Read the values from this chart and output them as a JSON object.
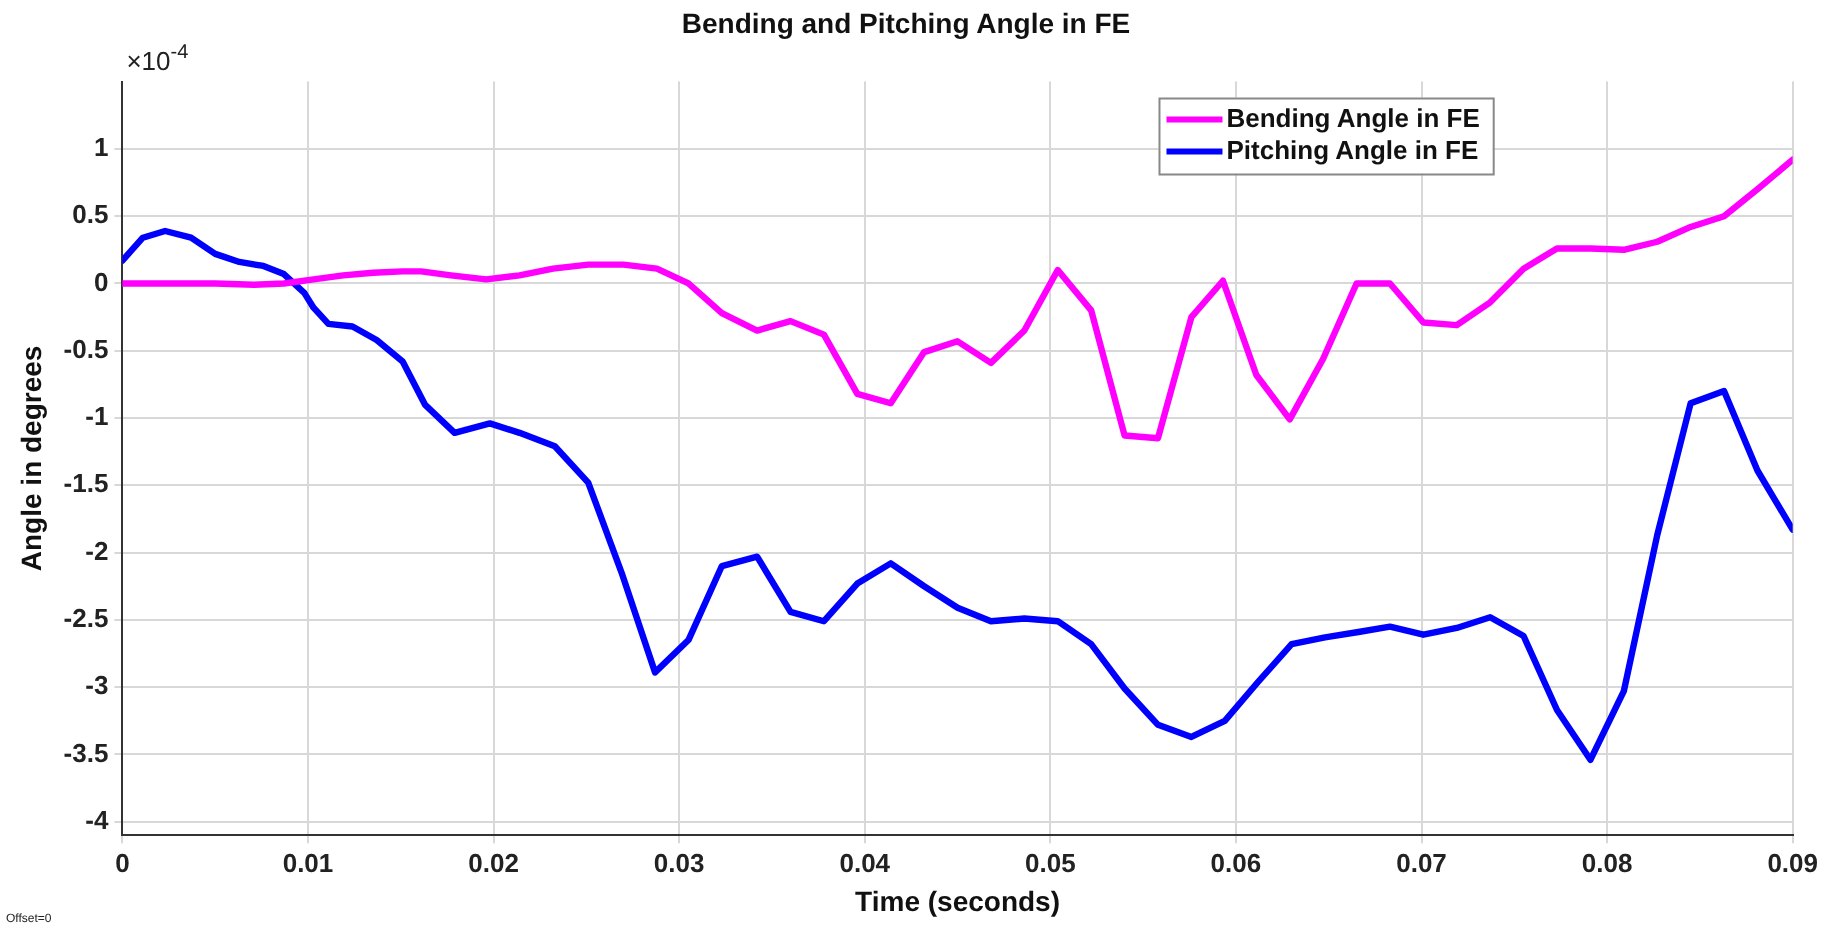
{
  "chart_data": {
    "type": "line",
    "title": "Bending and Pitching Angle in FE",
    "xlabel": "Time (seconds)",
    "ylabel": "Angle in degrees",
    "annotations": [
      "×10$^{-4}$",
      "Offset=0"
    ],
    "xlim": [
      0,
      0.09
    ],
    "xticks": [
      0,
      0.01,
      0.02,
      0.03,
      0.04,
      0.05,
      0.06,
      0.07,
      0.08,
      0.09
    ],
    "ylim": [
      -4.1,
      1.5
    ],
    "yticks": [
      -4,
      -3.5,
      -3,
      -2.5,
      -2,
      -1.5,
      -1,
      -0.5,
      0,
      0.5,
      1
    ],
    "grid": true,
    "legend": "top right",
    "marker": "none",
    "line_style": "solid",
    "series": [
      {
        "name": "Bending Angle in FE",
        "color": "#ff00ff",
        "x": [
          0,
          0.0023,
          0.005,
          0.0071,
          0.0087,
          0.0103,
          0.0119,
          0.0135,
          0.0151,
          0.0161,
          0.0177,
          0.0196,
          0.0214,
          0.0232,
          0.0251,
          0.027,
          0.0288,
          0.0305,
          0.0323,
          0.0342,
          0.036,
          0.0378,
          0.0396,
          0.0414,
          0.0432,
          0.045,
          0.0468,
          0.0486,
          0.0504,
          0.0522,
          0.054,
          0.0558,
          0.0576,
          0.0593,
          0.0611,
          0.0629,
          0.0647,
          0.0665,
          0.0683,
          0.0701,
          0.0719,
          0.0737,
          0.0755,
          0.0773,
          0.0791,
          0.0809,
          0.0827,
          0.0845,
          0.0863,
          0.0881,
          0.09
        ],
        "values": [
          0,
          0,
          0,
          -0.01,
          0,
          0.03,
          0.06,
          0.08,
          0.09,
          0.09,
          0.06,
          0.03,
          0.06,
          0.11,
          0.14,
          0.14,
          0.11,
          0,
          -0.22,
          -0.35,
          -0.28,
          -0.38,
          -0.82,
          -0.89,
          -0.51,
          -0.43,
          -0.59,
          -0.35,
          0.1,
          -0.2,
          -1.13,
          -1.15,
          -0.25,
          0.02,
          -0.68,
          -1.01,
          -0.56,
          0,
          0,
          -0.29,
          -0.31,
          -0.14,
          0.11,
          0.26,
          0.26,
          0.25,
          0.31,
          0.42,
          0.5,
          0.7,
          0.92
        ]
      },
      {
        "name": "Pitching Angle in FE",
        "color": "#0000ff",
        "x": [
          0,
          0.0011,
          0.0023,
          0.0037,
          0.005,
          0.0063,
          0.0076,
          0.0087,
          0.0098,
          0.0103,
          0.0111,
          0.0124,
          0.0137,
          0.0151,
          0.0163,
          0.0179,
          0.0198,
          0.0214,
          0.0233,
          0.0251,
          0.0269,
          0.0287,
          0.0305,
          0.0323,
          0.0342,
          0.036,
          0.0378,
          0.0396,
          0.0414,
          0.0432,
          0.045,
          0.0468,
          0.0486,
          0.0504,
          0.0522,
          0.054,
          0.0558,
          0.0576,
          0.0594,
          0.0612,
          0.063,
          0.0648,
          0.0666,
          0.0683,
          0.0701,
          0.0719,
          0.0737,
          0.0755,
          0.0773,
          0.0791,
          0.0809,
          0.0827,
          0.0845,
          0.0863,
          0.0881,
          0.09
        ],
        "values": [
          0.17,
          0.34,
          0.39,
          0.34,
          0.22,
          0.16,
          0.13,
          0.07,
          -0.07,
          -0.18,
          -0.3,
          -0.32,
          -0.42,
          -0.58,
          -0.9,
          -1.11,
          -1.04,
          -1.11,
          -1.21,
          -1.48,
          -2.15,
          -2.89,
          -2.65,
          -2.1,
          -2.03,
          -2.44,
          -2.51,
          -2.23,
          -2.08,
          -2.25,
          -2.41,
          -2.51,
          -2.49,
          -2.51,
          -2.68,
          -3.01,
          -3.28,
          -3.37,
          -3.25,
          -2.96,
          -2.68,
          -2.63,
          -2.59,
          -2.55,
          -2.61,
          -2.56,
          -2.48,
          -2.62,
          -3.17,
          -3.54,
          -3.03,
          -1.87,
          -0.89,
          -0.8,
          -1.39,
          -1.83
        ]
      }
    ]
  }
}
